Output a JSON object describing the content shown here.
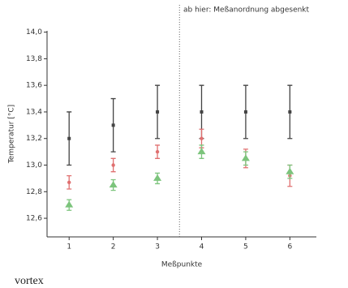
{
  "chart_data": {
    "type": "errorbar",
    "annotation": "ab hier: Meßanordnung abgesenkt",
    "vline": 3.5,
    "xlabel": "Meßpunkte",
    "ylabel": "Temperatur [°C]",
    "x": [
      1,
      2,
      3,
      4,
      5,
      6
    ],
    "series": [
      {
        "color": "#444444",
        "marker": "square",
        "values": [
          13.2,
          13.3,
          13.4,
          13.4,
          13.4,
          13.4
        ],
        "error": [
          0.2,
          0.2,
          0.2,
          0.2,
          0.2,
          0.2
        ]
      },
      {
        "color": "#e07070",
        "marker": "circle",
        "values": [
          12.87,
          13.0,
          13.1,
          13.2,
          13.05,
          12.92
        ],
        "error": [
          0.05,
          0.05,
          0.05,
          0.07,
          0.07,
          0.08
        ]
      },
      {
        "color": "#7cc47c",
        "marker": "triangle",
        "values": [
          12.7,
          12.85,
          12.9,
          13.1,
          13.05,
          12.95
        ],
        "error": [
          0.04,
          0.04,
          0.04,
          0.05,
          0.05,
          0.05
        ]
      }
    ],
    "xlim": [
      0.5,
      6.6
    ],
    "ylim": [
      12.46,
      14.01
    ],
    "xticks": [
      1,
      2,
      3,
      4,
      5,
      6
    ],
    "yticks": [
      {
        "value": 12.6,
        "label": "12,6"
      },
      {
        "value": 12.8,
        "label": "12,8"
      },
      {
        "value": 13.0,
        "label": "13,0"
      },
      {
        "value": 13.2,
        "label": "13,2"
      },
      {
        "value": 13.4,
        "label": "13,4"
      },
      {
        "value": 13.6,
        "label": "13,6"
      },
      {
        "value": 13.8,
        "label": "13,8"
      },
      {
        "value": 14.0,
        "label": "14,0"
      }
    ],
    "caption": "vortex"
  }
}
